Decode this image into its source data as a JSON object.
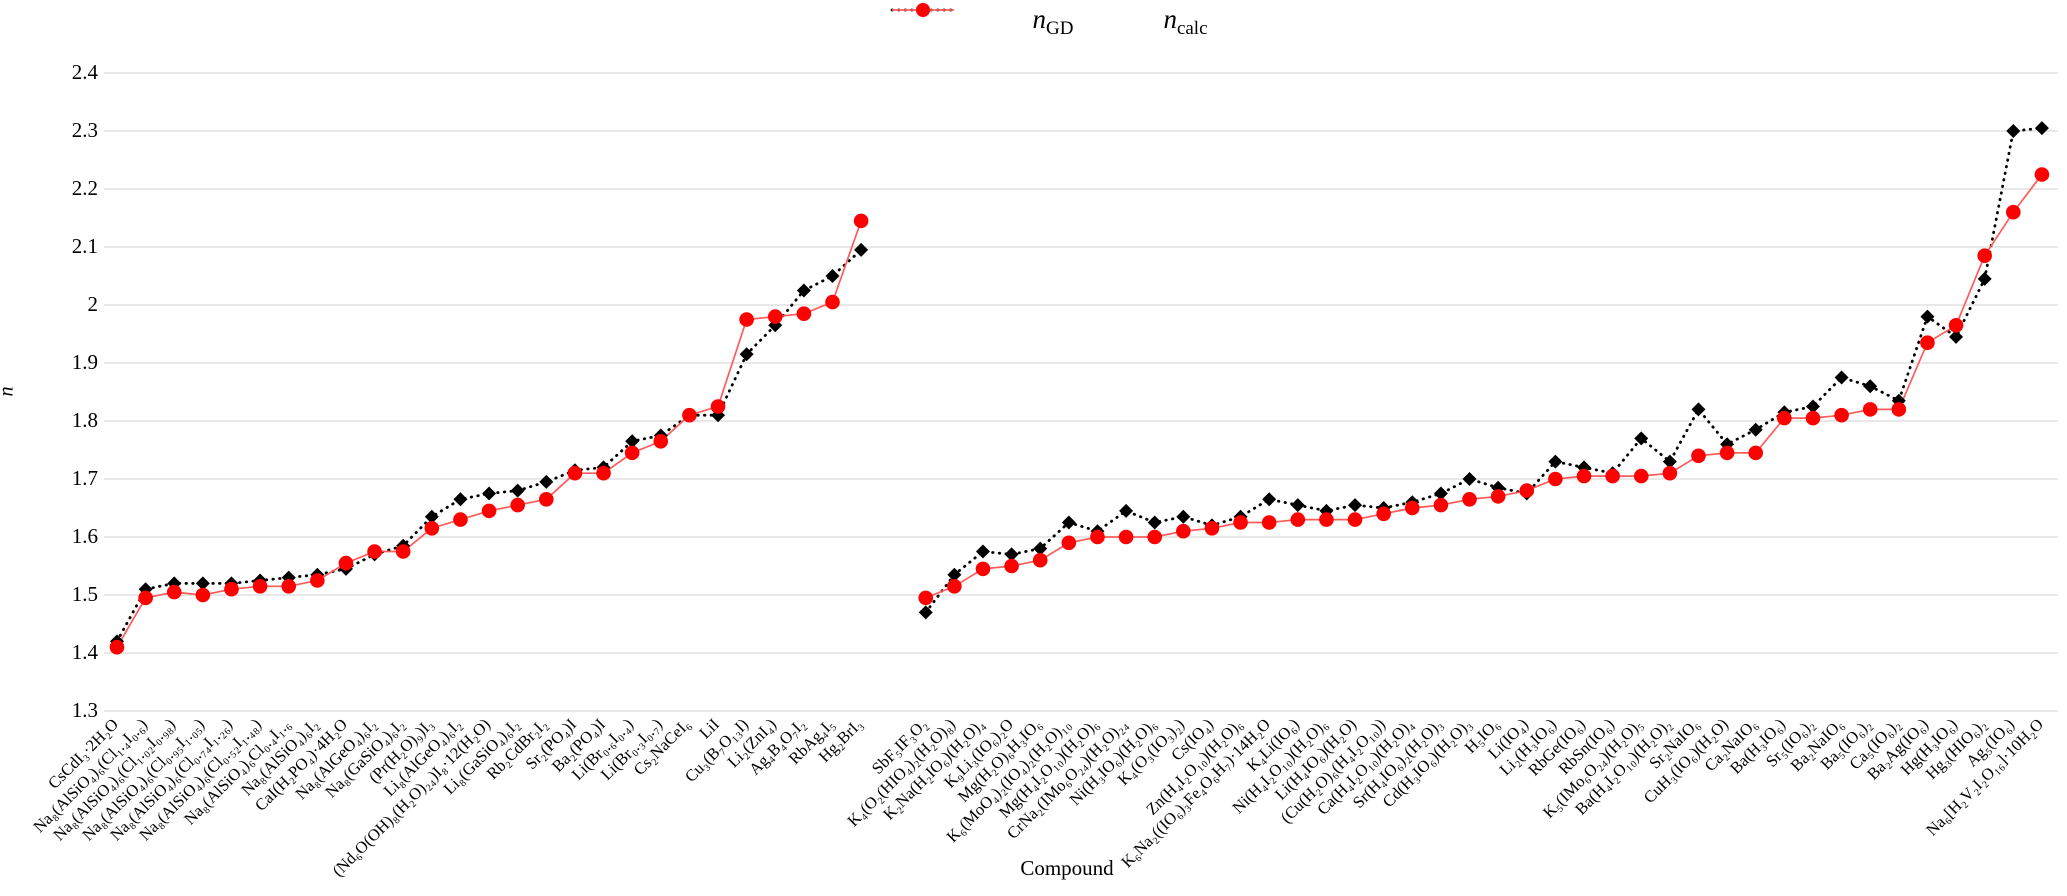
{
  "legend": {
    "items": [
      {
        "main": "n",
        "sub": "GD"
      },
      {
        "main": "n",
        "sub": "calc"
      }
    ]
  },
  "colors": {
    "ngd": "#000000",
    "ncalc_marker": "#fe0000",
    "ncalc_line": "#ff5b5b",
    "gridline": "#d9d9d9"
  },
  "chart_data": {
    "type": "line",
    "title": "",
    "xlabel": "Compound",
    "ylabel": "n",
    "ylim": [
      1.3,
      2.4
    ],
    "grid": true,
    "legend_position": "top-center",
    "y_ticks": [
      "2.4",
      "2.3",
      "2.2",
      "2.1",
      "2",
      "1.9",
      "1.8",
      "1.7",
      "1.6",
      "1.5",
      "1.4",
      "1.3"
    ],
    "gap_after_index": 26,
    "categories": [
      "CsCdI₃·2H₂O",
      "Na₈(AlSiO₄)₆(Cl₁.₄I₀.₆)",
      "Na₈(AlSiO₄)₆(Cl₁.₀₂I₀.₉₈)",
      "Na₈(AlSiO₄)₆(Cl₀.₉₅I₁.₀₅)",
      "Na₈(AlSiO₄)₆(Cl₀.₇₄I₁.₂₆)",
      "Na₈(AlSiO₄)₆(Cl₀.₅₂I₁.₄₈)",
      "Na₈(AlSiO₄)₆Cl₀.₄I₁.₆",
      "Na₈(AlSiO₄)₆I₂",
      "CaI(H₂PO₄)·4H₂O",
      "Na₈(AlGeO₄)₆I₂",
      "Na₈(GaSiO₄)₆I₂",
      "(Pr(H₂O)₉)I₃",
      "Li₈(AlGeO₄)₆I₂",
      "(Nd₆O(OH)₈(H₂O)₂₄)I₈·12(H₂O)",
      "Li₈(GaSiO₄)₆I₂",
      "Rb₂CdBr₂I₂",
      "Sr₂(PO₄)I",
      "Ba₂(PO₄)I",
      "Li(Br₀.₆I₀.₄)",
      "Li(Br₀.₃I₀.₇)",
      "Cs₂NaCeI₆",
      "LiI",
      "Cu₃(B₇O₁₃I)",
      "Li₂(ZnI₄)",
      "Ag₄B₄O₇I₂",
      "RbAg₄I₅",
      "Hg₂BrI₃",
      "SbF₅IF₃O₂",
      "K₄(O₂(HIO₄)₂(H₂O)₈)",
      "K₂Na(H₂IO₆)(H₂O)₄",
      "K₉Li₃(IO₆)₂O",
      "Mg(H₂O)₆H₃IO₆",
      "K₆(MoO₄)₂(IO₄)₂(H₂O)₁₀",
      "Mg(H₄I₂O₁₀)(H₂O)₆",
      "CrNa₂(IMo₆O₂₄)(H₂O)₂₄",
      "Ni(H₃IO₆)(H₂O)₆",
      "K₄(O₃(IO₃)₂)",
      "Cs(IO₄)",
      "Zn(H₄I₂O₁₀)(H₂O)₆",
      "K₆Na₂((IO₆)₃Fe₄O₆H₇)·14H₂O",
      "K₄Li(IO₆)",
      "Ni(H₄I₂O₁₀)(H₂O)₆",
      "Li(H₄IO₆)(H₂O)",
      "(Cu(H₂O)₆(H₄I₂O₁₀))",
      "Ca(H₄I₂O₁₀)(H₂O)₄",
      "Sr(H₄IO₆)₂(H₂O)₃",
      "Cd(H₃IO₆)(H₂O)₃",
      "H₅IO₆",
      "Li(IO₄)",
      "Li₂(H₃IO₆)",
      "RbGe(IO₆)",
      "RbSn(IO₆)",
      "K₅(IMo₆O₂₄)(H₂O)₅",
      "Ba(H₄I₂O₁₀)(H₂O)₂",
      "Sr₂NaIO₆",
      "CuH₃(IO₆)(H₂O)",
      "Ca₂NaIO₆",
      "Ba(H₃IO₆)",
      "Sr₅(IO₆)₂",
      "Ba₂NaIO₆",
      "Ba₅(IO₆)₂",
      "Ca₅(IO₆)₂",
      "Ba₂Ag(IO₆)",
      "Hg(H₃IO₆)",
      "Hg₃(HIO₆)₂",
      "Ag₅(IO₆)",
      "Na₆[H₂V₂I₂O₁₆]·10H₂O"
    ],
    "series": [
      {
        "name": "n_GD",
        "marker": "diamond",
        "line_style": "dotted",
        "values": [
          1.42,
          1.51,
          1.52,
          1.52,
          1.52,
          1.525,
          1.53,
          1.535,
          1.545,
          1.57,
          1.585,
          1.635,
          1.665,
          1.675,
          1.68,
          1.695,
          1.715,
          1.72,
          1.765,
          1.775,
          1.81,
          1.81,
          1.915,
          1.965,
          2.025,
          2.05,
          2.095,
          1.47,
          1.535,
          1.575,
          1.57,
          1.58,
          1.625,
          1.61,
          1.645,
          1.625,
          1.635,
          1.62,
          1.635,
          1.665,
          1.655,
          1.645,
          1.655,
          1.65,
          1.66,
          1.675,
          1.7,
          1.685,
          1.675,
          1.73,
          1.72,
          1.71,
          1.77,
          1.73,
          1.82,
          1.76,
          1.785,
          1.815,
          1.825,
          1.875,
          1.86,
          1.835,
          1.98,
          1.945,
          2.045,
          2.3,
          2.305
        ]
      },
      {
        "name": "n_calc",
        "marker": "circle",
        "line_style": "solid",
        "values": [
          1.41,
          1.495,
          1.505,
          1.5,
          1.51,
          1.515,
          1.515,
          1.525,
          1.555,
          1.575,
          1.575,
          1.615,
          1.63,
          1.645,
          1.655,
          1.665,
          1.71,
          1.71,
          1.745,
          1.765,
          1.81,
          1.825,
          1.975,
          1.98,
          1.985,
          2.005,
          2.145,
          1.495,
          1.515,
          1.545,
          1.55,
          1.56,
          1.59,
          1.6,
          1.6,
          1.6,
          1.61,
          1.615,
          1.625,
          1.625,
          1.63,
          1.63,
          1.63,
          1.64,
          1.65,
          1.655,
          1.665,
          1.67,
          1.68,
          1.7,
          1.705,
          1.705,
          1.705,
          1.71,
          1.74,
          1.745,
          1.745,
          1.805,
          1.805,
          1.81,
          1.82,
          1.82,
          1.935,
          1.965,
          2.085,
          2.16,
          2.225
        ]
      }
    ]
  }
}
